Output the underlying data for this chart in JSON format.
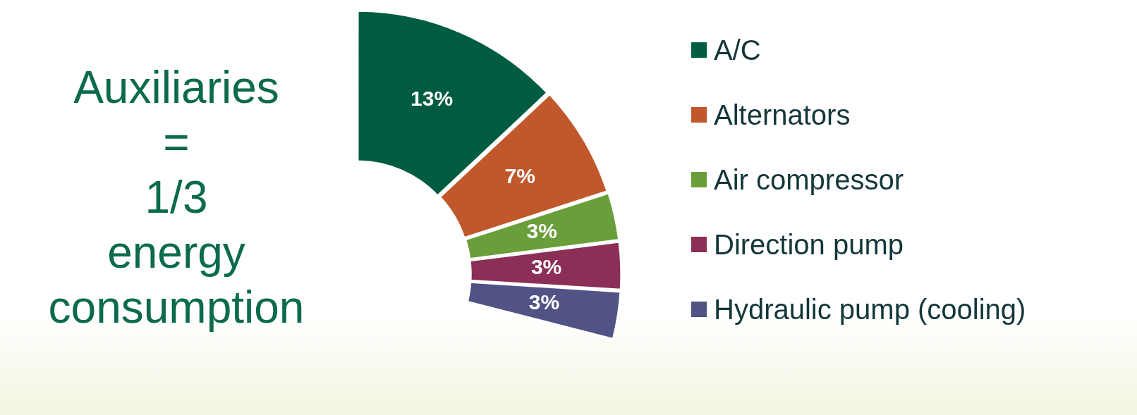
{
  "chart_data": {
    "type": "donut",
    "title": "Auxiliaries = 1/3 energy consumption",
    "categories": [
      "A/C",
      "Alternators",
      "Air compressor",
      "Direction pump",
      "Hydraulic pump (cooling)"
    ],
    "values": [
      13,
      7,
      3,
      3,
      3
    ],
    "value_labels": [
      "13%",
      "7%",
      "3%",
      "3%",
      "3%"
    ],
    "colors": [
      "#005c40",
      "#c0582c",
      "#6a9e3a",
      "#8b2f57",
      "#505384"
    ],
    "legend": "right"
  }
}
